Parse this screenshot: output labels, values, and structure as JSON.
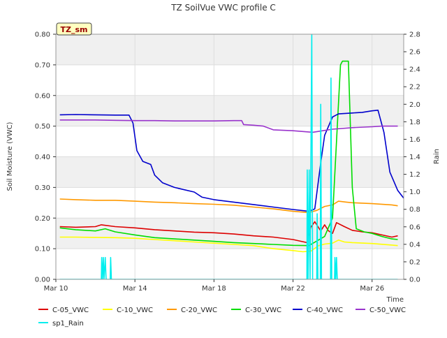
{
  "chart_data": {
    "type": "line",
    "title": "TZ SoilVue VWC profile C",
    "xlabel": "Time",
    "ylabel": "Soil Moisture (VWC)",
    "y2label": "Rain",
    "badge": "TZ_sm",
    "xlim": [
      10,
      27.6
    ],
    "ylim": [
      0,
      0.8
    ],
    "y2lim": [
      0,
      2.8
    ],
    "x_ticks": [
      {
        "x": 10,
        "label": "Mar 10"
      },
      {
        "x": 14,
        "label": "Mar 14"
      },
      {
        "x": 18,
        "label": "Mar 18"
      },
      {
        "x": 22,
        "label": "Mar 22"
      },
      {
        "x": 26,
        "label": "Mar 26"
      }
    ],
    "y_ticks": [
      {
        "v": 0,
        "label": "0.00"
      },
      {
        "v": 0.1,
        "label": "0.10"
      },
      {
        "v": 0.2,
        "label": "0.20"
      },
      {
        "v": 0.3,
        "label": "0.30"
      },
      {
        "v": 0.4,
        "label": "0.40"
      },
      {
        "v": 0.5,
        "label": "0.50"
      },
      {
        "v": 0.6,
        "label": "0.60"
      },
      {
        "v": 0.7,
        "label": "0.70"
      },
      {
        "v": 0.8,
        "label": "0.80"
      }
    ],
    "y2_ticks": [
      {
        "v": 0,
        "label": "0.0"
      },
      {
        "v": 0.2,
        "label": "0.2"
      },
      {
        "v": 0.4,
        "label": "0.4"
      },
      {
        "v": 0.6,
        "label": "0.6"
      },
      {
        "v": 0.8,
        "label": "0.8"
      },
      {
        "v": 1.0,
        "label": "1.0"
      },
      {
        "v": 1.2,
        "label": "1.2"
      },
      {
        "v": 1.4,
        "label": "1.4"
      },
      {
        "v": 1.6,
        "label": "1.6"
      },
      {
        "v": 1.8,
        "label": "1.8"
      },
      {
        "v": 2.0,
        "label": "2.0"
      },
      {
        "v": 2.2,
        "label": "2.2"
      },
      {
        "v": 2.4,
        "label": "2.4"
      },
      {
        "v": 2.6,
        "label": "2.6"
      },
      {
        "v": 2.8,
        "label": "2.8"
      }
    ],
    "grid": true,
    "legend": "bottom",
    "series": [
      {
        "name": "C-05_VWC",
        "color": "#dd0000",
        "axis": "left",
        "points": [
          [
            10.2,
            0.172
          ],
          [
            11,
            0.17
          ],
          [
            12,
            0.172
          ],
          [
            12.3,
            0.178
          ],
          [
            13,
            0.172
          ],
          [
            14,
            0.168
          ],
          [
            15,
            0.162
          ],
          [
            16,
            0.158
          ],
          [
            17,
            0.154
          ],
          [
            18,
            0.152
          ],
          [
            19,
            0.148
          ],
          [
            20,
            0.142
          ],
          [
            21,
            0.138
          ],
          [
            22,
            0.13
          ],
          [
            22.7,
            0.12
          ],
          [
            22.9,
            0.17
          ],
          [
            23.1,
            0.188
          ],
          [
            23.4,
            0.158
          ],
          [
            23.6,
            0.178
          ],
          [
            23.8,
            0.158
          ],
          [
            24,
            0.15
          ],
          [
            24.2,
            0.185
          ],
          [
            24.6,
            0.172
          ],
          [
            25,
            0.16
          ],
          [
            25.5,
            0.155
          ],
          [
            26,
            0.152
          ],
          [
            26.5,
            0.145
          ],
          [
            27,
            0.138
          ],
          [
            27.3,
            0.142
          ]
        ]
      },
      {
        "name": "C-10_VWC",
        "color": "#ffff00",
        "axis": "left",
        "points": [
          [
            10.2,
            0.138
          ],
          [
            11,
            0.138
          ],
          [
            12,
            0.137
          ],
          [
            13,
            0.136
          ],
          [
            14,
            0.134
          ],
          [
            15,
            0.13
          ],
          [
            16,
            0.126
          ],
          [
            17,
            0.122
          ],
          [
            18,
            0.118
          ],
          [
            19,
            0.114
          ],
          [
            20,
            0.11
          ],
          [
            21,
            0.1
          ],
          [
            22,
            0.094
          ],
          [
            22.5,
            0.09
          ],
          [
            22.9,
            0.092
          ],
          [
            23.3,
            0.11
          ],
          [
            23.6,
            0.115
          ],
          [
            24,
            0.118
          ],
          [
            24.3,
            0.128
          ],
          [
            24.6,
            0.122
          ],
          [
            25,
            0.12
          ],
          [
            26,
            0.117
          ],
          [
            27,
            0.112
          ],
          [
            27.3,
            0.11
          ]
        ]
      },
      {
        "name": "C-20_VWC",
        "color": "#ff9900",
        "axis": "left",
        "points": [
          [
            10.2,
            0.262
          ],
          [
            11,
            0.26
          ],
          [
            12,
            0.258
          ],
          [
            13,
            0.258
          ],
          [
            14,
            0.255
          ],
          [
            15,
            0.252
          ],
          [
            16,
            0.25
          ],
          [
            17,
            0.247
          ],
          [
            18,
            0.245
          ],
          [
            19,
            0.242
          ],
          [
            20,
            0.236
          ],
          [
            21,
            0.23
          ],
          [
            22,
            0.222
          ],
          [
            22.8,
            0.218
          ],
          [
            23.2,
            0.225
          ],
          [
            23.6,
            0.238
          ],
          [
            24,
            0.243
          ],
          [
            24.3,
            0.255
          ],
          [
            24.7,
            0.252
          ],
          [
            25,
            0.25
          ],
          [
            26,
            0.247
          ],
          [
            27,
            0.243
          ],
          [
            27.3,
            0.24
          ]
        ]
      },
      {
        "name": "C-30_VWC",
        "color": "#00dd00",
        "axis": "left",
        "points": [
          [
            10.2,
            0.168
          ],
          [
            11,
            0.162
          ],
          [
            12,
            0.158
          ],
          [
            12.5,
            0.165
          ],
          [
            13,
            0.155
          ],
          [
            14,
            0.145
          ],
          [
            15,
            0.136
          ],
          [
            16,
            0.132
          ],
          [
            17,
            0.128
          ],
          [
            18,
            0.124
          ],
          [
            19,
            0.12
          ],
          [
            20,
            0.117
          ],
          [
            21,
            0.114
          ],
          [
            22,
            0.111
          ],
          [
            22.8,
            0.11
          ],
          [
            23.2,
            0.125
          ],
          [
            23.6,
            0.14
          ],
          [
            24,
            0.2
          ],
          [
            24.2,
            0.45
          ],
          [
            24.4,
            0.7
          ],
          [
            24.5,
            0.712
          ],
          [
            24.8,
            0.712
          ],
          [
            25,
            0.3
          ],
          [
            25.2,
            0.165
          ],
          [
            25.6,
            0.155
          ],
          [
            26,
            0.15
          ],
          [
            26.5,
            0.14
          ],
          [
            27,
            0.132
          ],
          [
            27.3,
            0.13
          ]
        ]
      },
      {
        "name": "C-40_VWC",
        "color": "#0000cc",
        "axis": "left",
        "points": [
          [
            10.2,
            0.537
          ],
          [
            11,
            0.538
          ],
          [
            12,
            0.537
          ],
          [
            13,
            0.536
          ],
          [
            13.7,
            0.536
          ],
          [
            13.9,
            0.51
          ],
          [
            14.1,
            0.42
          ],
          [
            14.4,
            0.385
          ],
          [
            14.8,
            0.375
          ],
          [
            15,
            0.34
          ],
          [
            15.4,
            0.315
          ],
          [
            16,
            0.3
          ],
          [
            17,
            0.285
          ],
          [
            17.4,
            0.268
          ],
          [
            18,
            0.26
          ],
          [
            19,
            0.252
          ],
          [
            20,
            0.244
          ],
          [
            21,
            0.236
          ],
          [
            22,
            0.228
          ],
          [
            22.8,
            0.222
          ],
          [
            23.1,
            0.23
          ],
          [
            23.4,
            0.38
          ],
          [
            23.6,
            0.47
          ],
          [
            24,
            0.53
          ],
          [
            24.3,
            0.54
          ],
          [
            25,
            0.543
          ],
          [
            25.5,
            0.545
          ],
          [
            26,
            0.55
          ],
          [
            26.3,
            0.552
          ],
          [
            26.6,
            0.48
          ],
          [
            26.9,
            0.35
          ],
          [
            27.3,
            0.29
          ],
          [
            27.6,
            0.265
          ]
        ]
      },
      {
        "name": "C-50_VWC",
        "color": "#9933cc",
        "axis": "left",
        "points": [
          [
            10.2,
            0.52
          ],
          [
            11,
            0.52
          ],
          [
            12,
            0.52
          ],
          [
            13,
            0.519
          ],
          [
            14,
            0.518
          ],
          [
            15,
            0.518
          ],
          [
            16,
            0.517
          ],
          [
            17,
            0.517
          ],
          [
            18,
            0.517
          ],
          [
            19,
            0.518
          ],
          [
            19.4,
            0.518
          ],
          [
            19.5,
            0.505
          ],
          [
            20,
            0.503
          ],
          [
            20.5,
            0.5
          ],
          [
            21,
            0.488
          ],
          [
            22,
            0.485
          ],
          [
            23,
            0.48
          ],
          [
            23.5,
            0.485
          ],
          [
            24,
            0.49
          ],
          [
            25,
            0.495
          ],
          [
            26,
            0.498
          ],
          [
            26.5,
            0.5
          ],
          [
            27,
            0.5
          ],
          [
            27.3,
            0.5
          ]
        ]
      },
      {
        "name": "sp1_Rain",
        "color": "#00eeee",
        "axis": "right",
        "points": [
          [
            10.2,
            0
          ],
          [
            12.3,
            0
          ],
          [
            12.32,
            0.25
          ],
          [
            12.36,
            0
          ],
          [
            12.4,
            0.25
          ],
          [
            12.44,
            0
          ],
          [
            12.5,
            0.25
          ],
          [
            12.54,
            0
          ],
          [
            12.75,
            0
          ],
          [
            12.77,
            0.25
          ],
          [
            12.81,
            0
          ],
          [
            22.7,
            0
          ],
          [
            22.72,
            1.25
          ],
          [
            22.76,
            0
          ],
          [
            22.82,
            1.25
          ],
          [
            22.86,
            0
          ],
          [
            22.95,
            2.8
          ],
          [
            22.99,
            0
          ],
          [
            23.2,
            0
          ],
          [
            23.22,
            0.75
          ],
          [
            23.26,
            0
          ],
          [
            23.38,
            0
          ],
          [
            23.4,
            2.0
          ],
          [
            23.44,
            0
          ],
          [
            23.9,
            0
          ],
          [
            23.92,
            2.3
          ],
          [
            23.96,
            0
          ],
          [
            24.1,
            0
          ],
          [
            24.12,
            0.25
          ],
          [
            24.16,
            0
          ],
          [
            24.2,
            0.25
          ],
          [
            24.24,
            0
          ],
          [
            27.3,
            0
          ]
        ]
      }
    ]
  }
}
